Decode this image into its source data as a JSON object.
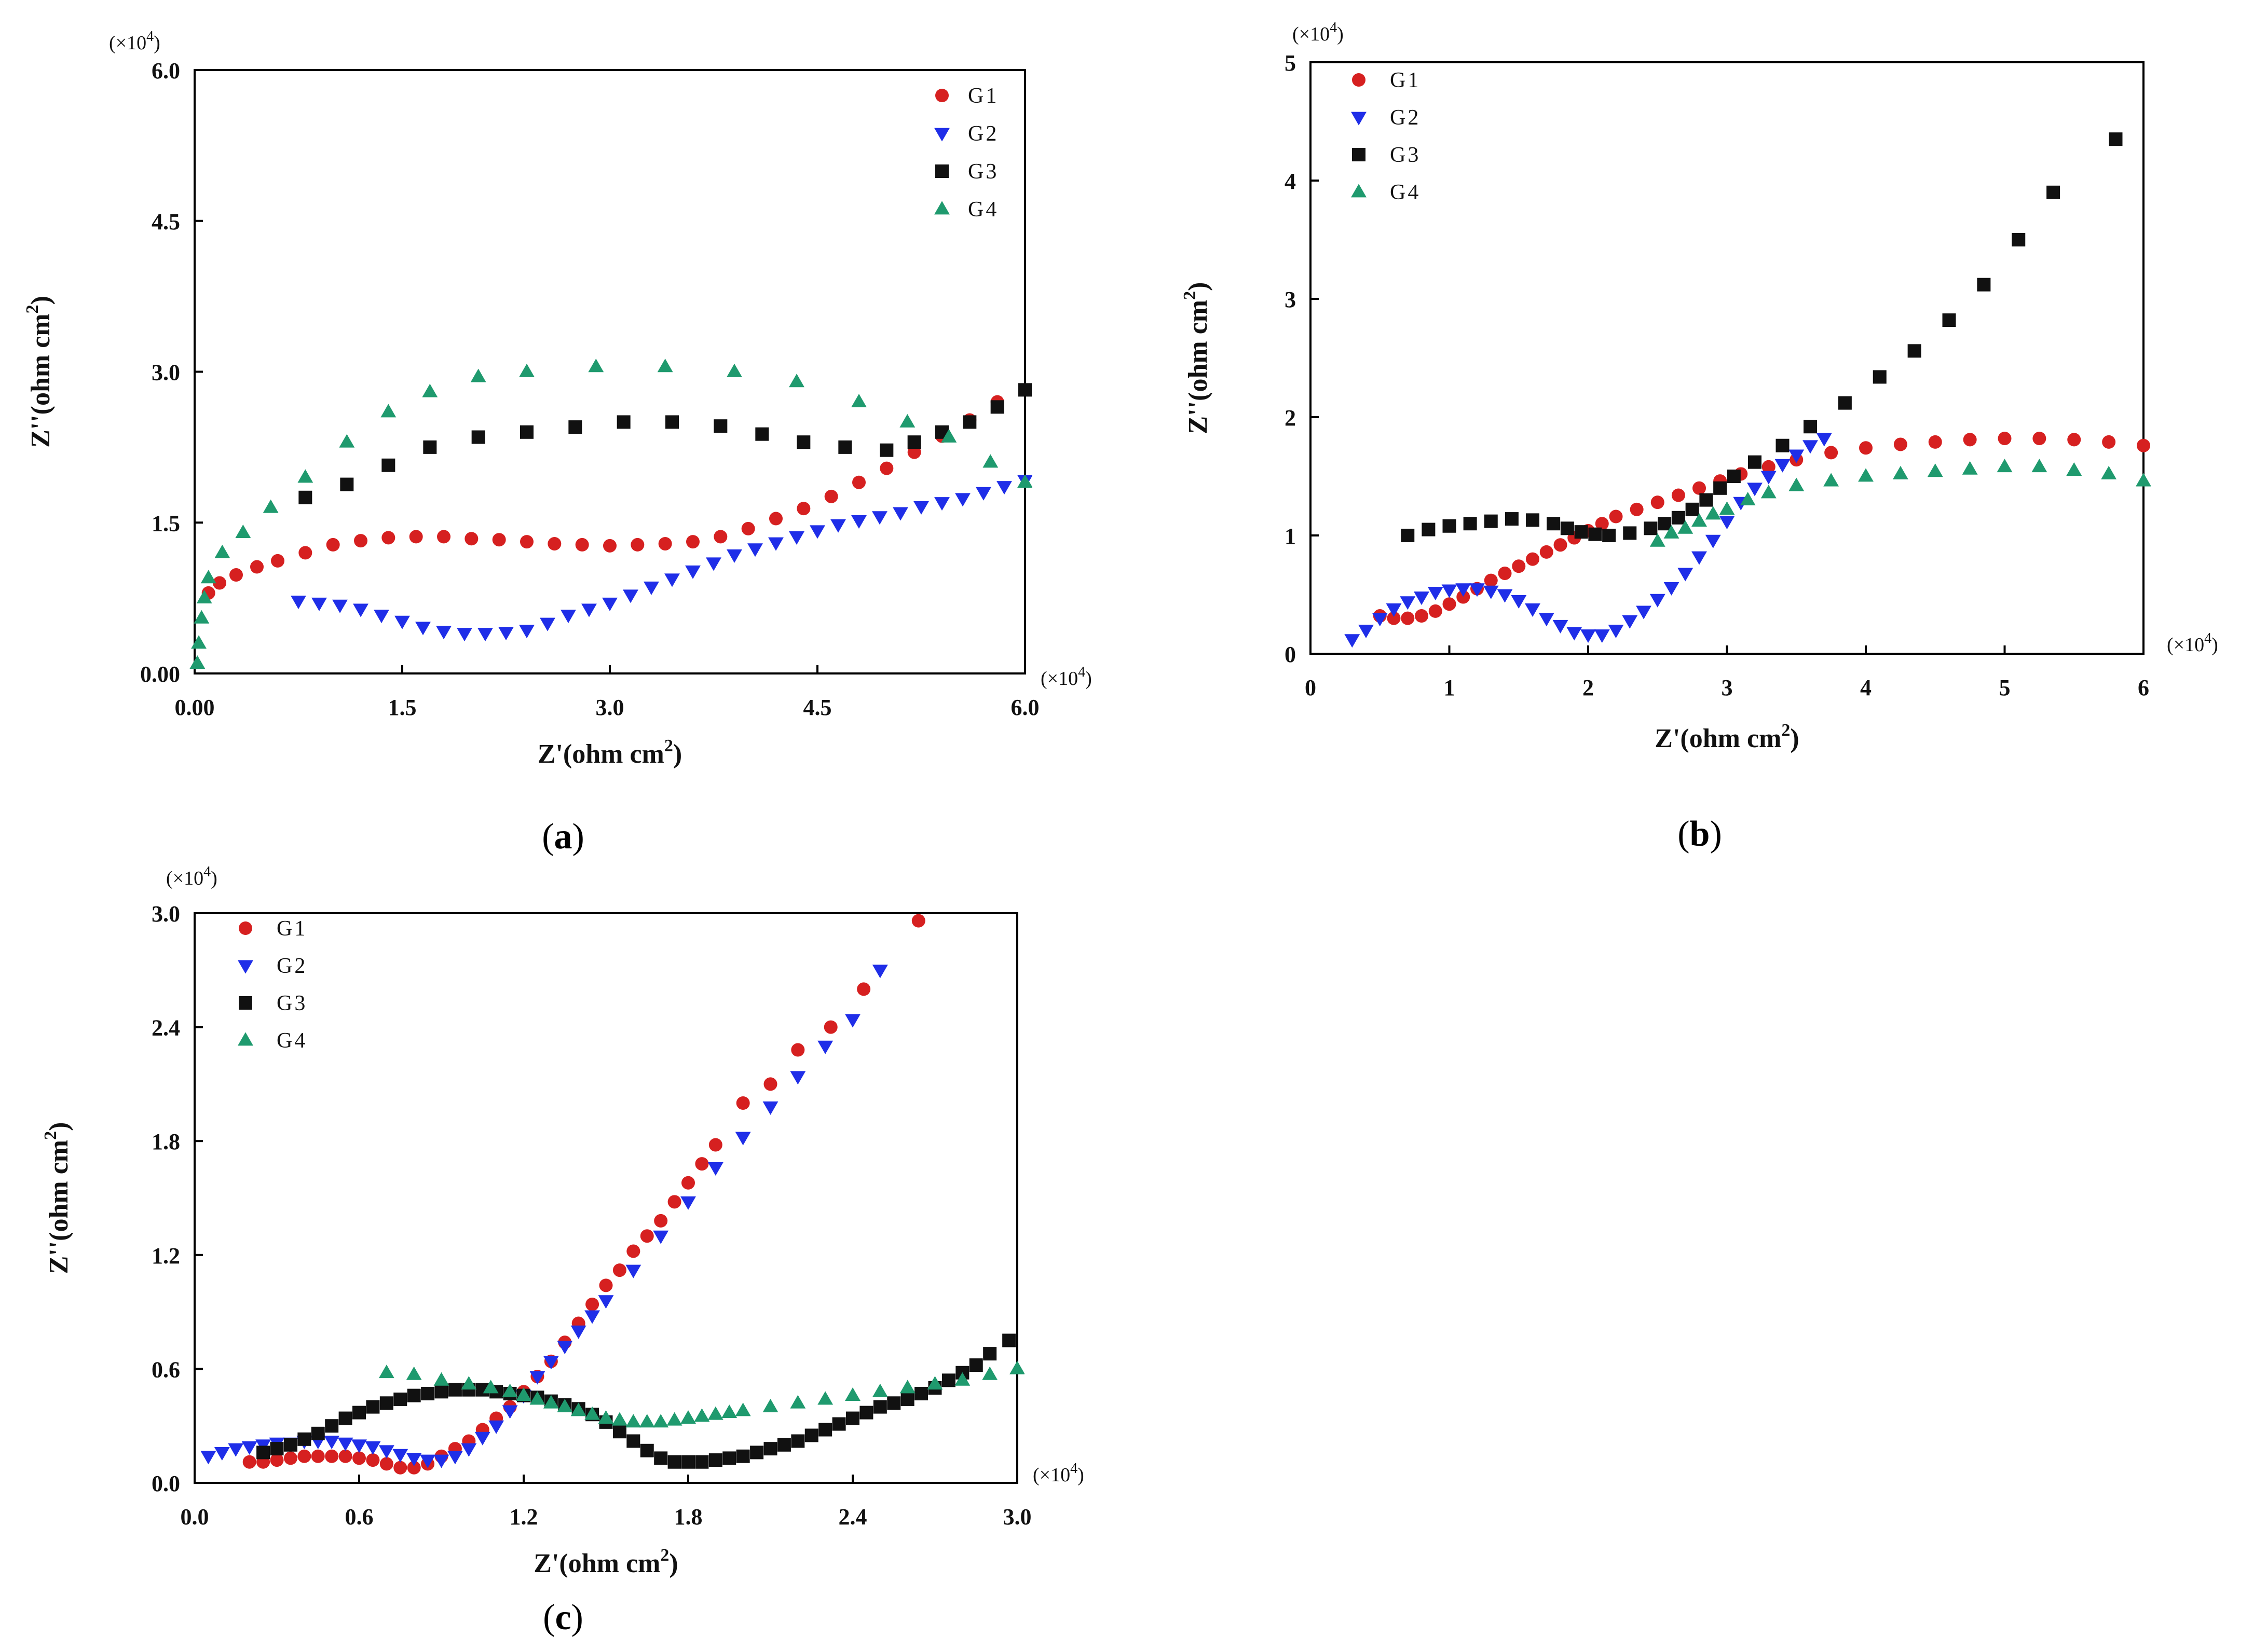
{
  "colors": {
    "G1": "#d62020",
    "G2": "#1f2ee8",
    "G3": "#111111",
    "G4": "#1f9a6e"
  },
  "chart_data": [
    {
      "id": "a",
      "type": "scatter",
      "panel_label": "a",
      "xlabel": "Z'(ohm cm",
      "xlabel_sup": "2",
      "ylabel": "Z''(ohm cm",
      "ylabel_sup": "2",
      "x_multiplier": "(×10",
      "x_multiplier_sup": "4",
      "y_multiplier": "(×10",
      "y_multiplier_sup": "4",
      "xlim": [
        0,
        6
      ],
      "ylim": [
        0,
        6
      ],
      "xticks": [
        0,
        1.5,
        3,
        4.5,
        6
      ],
      "xtick_labels": [
        "0.00",
        "1.5",
        "3.0",
        "4.5",
        "6.0"
      ],
      "yticks": [
        0,
        1.5,
        3,
        4.5,
        6
      ],
      "ytick_labels": [
        "0.00",
        "1.5",
        "3.0",
        "4.5",
        "6.0"
      ],
      "legend": [
        "G1",
        "G2",
        "G3",
        "G4"
      ],
      "legend_position": "top-right",
      "series": [
        {
          "name": "G1",
          "marker": "circle",
          "x": [
            0.1,
            0.18,
            0.3,
            0.45,
            0.6,
            0.8,
            1.0,
            1.2,
            1.4,
            1.6,
            1.8,
            2.0,
            2.2,
            2.4,
            2.6,
            2.8,
            3.0,
            3.2,
            3.4,
            3.6,
            3.8,
            4.0,
            4.2,
            4.4,
            4.6,
            4.8,
            5.0,
            5.2,
            5.4,
            5.6,
            5.8
          ],
          "y": [
            0.8,
            0.9,
            0.98,
            1.06,
            1.12,
            1.2,
            1.28,
            1.32,
            1.35,
            1.36,
            1.36,
            1.34,
            1.33,
            1.31,
            1.29,
            1.28,
            1.27,
            1.28,
            1.29,
            1.31,
            1.36,
            1.44,
            1.54,
            1.64,
            1.76,
            1.9,
            2.04,
            2.2,
            2.36,
            2.52,
            2.7
          ]
        },
        {
          "name": "G2",
          "marker": "triangle-down",
          "x": [
            0.75,
            0.9,
            1.05,
            1.2,
            1.35,
            1.5,
            1.65,
            1.8,
            1.95,
            2.1,
            2.25,
            2.4,
            2.55,
            2.7,
            2.85,
            3.0,
            3.15,
            3.3,
            3.45,
            3.6,
            3.75,
            3.9,
            4.05,
            4.2,
            4.35,
            4.5,
            4.65,
            4.8,
            4.95,
            5.1,
            5.25,
            5.4,
            5.55,
            5.7,
            5.85,
            6.0
          ],
          "y": [
            0.72,
            0.7,
            0.68,
            0.64,
            0.58,
            0.52,
            0.46,
            0.42,
            0.4,
            0.4,
            0.41,
            0.43,
            0.5,
            0.58,
            0.64,
            0.7,
            0.78,
            0.86,
            0.94,
            1.02,
            1.1,
            1.18,
            1.24,
            1.3,
            1.36,
            1.42,
            1.48,
            1.52,
            1.56,
            1.6,
            1.66,
            1.7,
            1.74,
            1.8,
            1.86,
            1.92
          ]
        },
        {
          "name": "G3",
          "marker": "square",
          "x": [
            0.8,
            1.1,
            1.4,
            1.7,
            2.05,
            2.4,
            2.75,
            3.1,
            3.45,
            3.8,
            4.1,
            4.4,
            4.7,
            5.0,
            5.2,
            5.4,
            5.6,
            5.8,
            6.0
          ],
          "y": [
            1.75,
            1.88,
            2.07,
            2.25,
            2.35,
            2.4,
            2.45,
            2.5,
            2.5,
            2.46,
            2.38,
            2.3,
            2.25,
            2.22,
            2.3,
            2.4,
            2.5,
            2.65,
            2.82
          ]
        },
        {
          "name": "G4",
          "marker": "triangle-up",
          "x": [
            0.02,
            0.03,
            0.05,
            0.07,
            0.1,
            0.2,
            0.35,
            0.55,
            0.8,
            1.1,
            1.4,
            1.7,
            2.05,
            2.4,
            2.9,
            3.4,
            3.9,
            4.35,
            4.8,
            5.15,
            5.45,
            5.75,
            6.0
          ],
          "y": [
            0.1,
            0.3,
            0.55,
            0.75,
            0.95,
            1.2,
            1.4,
            1.65,
            1.95,
            2.3,
            2.6,
            2.8,
            2.95,
            3.0,
            3.05,
            3.05,
            3.0,
            2.9,
            2.7,
            2.5,
            2.35,
            2.1,
            1.9
          ]
        }
      ]
    },
    {
      "id": "b",
      "type": "scatter",
      "panel_label": "b",
      "xlabel": "Z'(ohm cm",
      "xlabel_sup": "2",
      "ylabel": "Z''(ohm cm",
      "ylabel_sup": "2",
      "x_multiplier": "(×10",
      "x_multiplier_sup": "4",
      "y_multiplier": "(×10",
      "y_multiplier_sup": "4",
      "xlim": [
        0,
        6
      ],
      "ylim": [
        0,
        5
      ],
      "xticks": [
        0,
        1,
        2,
        3,
        4,
        5,
        6
      ],
      "xtick_labels": [
        "0",
        "1",
        "2",
        "3",
        "4",
        "5",
        "6"
      ],
      "yticks": [
        0,
        1,
        2,
        3,
        4,
        5
      ],
      "ytick_labels": [
        "0",
        "1",
        "2",
        "3",
        "4",
        "5"
      ],
      "legend": [
        "G1",
        "G2",
        "G3",
        "G4"
      ],
      "legend_position": "top-left",
      "series": [
        {
          "name": "G1",
          "marker": "circle",
          "x": [
            0.5,
            0.6,
            0.7,
            0.8,
            0.9,
            1.0,
            1.1,
            1.2,
            1.3,
            1.4,
            1.5,
            1.6,
            1.7,
            1.8,
            1.9,
            2.0,
            2.1,
            2.2,
            2.35,
            2.5,
            2.65,
            2.8,
            2.95,
            3.1,
            3.3,
            3.5,
            3.75,
            4.0,
            4.25,
            4.5,
            4.75,
            5.0,
            5.25,
            5.5,
            5.75,
            6.0
          ],
          "y": [
            0.32,
            0.3,
            0.3,
            0.32,
            0.36,
            0.42,
            0.48,
            0.55,
            0.62,
            0.68,
            0.74,
            0.8,
            0.86,
            0.92,
            0.98,
            1.04,
            1.1,
            1.16,
            1.22,
            1.28,
            1.34,
            1.4,
            1.46,
            1.52,
            1.58,
            1.64,
            1.7,
            1.74,
            1.77,
            1.79,
            1.81,
            1.82,
            1.82,
            1.81,
            1.79,
            1.76
          ]
        },
        {
          "name": "G2",
          "marker": "triangle-down",
          "x": [
            0.3,
            0.4,
            0.5,
            0.6,
            0.7,
            0.8,
            0.9,
            1.0,
            1.1,
            1.2,
            1.3,
            1.4,
            1.5,
            1.6,
            1.7,
            1.8,
            1.9,
            2.0,
            2.1,
            2.2,
            2.3,
            2.4,
            2.5,
            2.6,
            2.7,
            2.8,
            2.9,
            3.0,
            3.1,
            3.2,
            3.3,
            3.4,
            3.5,
            3.6,
            3.7
          ],
          "y": [
            0.12,
            0.2,
            0.3,
            0.38,
            0.44,
            0.48,
            0.52,
            0.54,
            0.55,
            0.55,
            0.53,
            0.5,
            0.45,
            0.38,
            0.3,
            0.24,
            0.18,
            0.16,
            0.16,
            0.2,
            0.28,
            0.36,
            0.46,
            0.56,
            0.68,
            0.82,
            0.96,
            1.12,
            1.28,
            1.4,
            1.5,
            1.6,
            1.68,
            1.76,
            1.82
          ]
        },
        {
          "name": "G3",
          "marker": "square",
          "x": [
            0.7,
            0.85,
            1.0,
            1.15,
            1.3,
            1.45,
            1.6,
            1.75,
            1.85,
            1.95,
            2.05,
            2.15,
            2.3,
            2.45,
            2.55,
            2.65,
            2.75,
            2.85,
            2.95,
            3.05,
            3.2,
            3.4,
            3.6,
            3.85,
            4.1,
            4.35,
            4.6,
            4.85,
            5.1,
            5.35,
            5.8
          ],
          "y": [
            1.0,
            1.05,
            1.08,
            1.1,
            1.12,
            1.14,
            1.13,
            1.1,
            1.06,
            1.03,
            1.01,
            1.0,
            1.02,
            1.06,
            1.1,
            1.15,
            1.22,
            1.3,
            1.4,
            1.5,
            1.62,
            1.76,
            1.92,
            2.12,
            2.34,
            2.56,
            2.82,
            3.12,
            3.5,
            3.9,
            4.35
          ]
        },
        {
          "name": "G4",
          "marker": "triangle-up",
          "x": [
            2.5,
            2.6,
            2.7,
            2.8,
            2.9,
            3.0,
            3.15,
            3.3,
            3.5,
            3.75,
            4.0,
            4.25,
            4.5,
            4.75,
            5.0,
            5.25,
            5.5,
            5.75,
            6.0
          ],
          "y": [
            0.95,
            1.02,
            1.06,
            1.12,
            1.18,
            1.22,
            1.3,
            1.36,
            1.42,
            1.46,
            1.5,
            1.52,
            1.54,
            1.56,
            1.58,
            1.58,
            1.55,
            1.52,
            1.46
          ]
        }
      ]
    },
    {
      "id": "c",
      "type": "scatter",
      "panel_label": "c",
      "xlabel": "Z'(ohm cm",
      "xlabel_sup": "2",
      "ylabel": "Z''(ohm cm",
      "ylabel_sup": "2",
      "x_multiplier": "(×10",
      "x_multiplier_sup": "4",
      "y_multiplier": "(×10",
      "y_multiplier_sup": "4",
      "xlim": [
        0,
        3
      ],
      "ylim": [
        0,
        3
      ],
      "xticks": [
        0,
        0.6,
        1.2,
        1.8,
        2.4,
        3.0
      ],
      "xtick_labels": [
        "0.0",
        "0.6",
        "1.2",
        "1.8",
        "2.4",
        "3.0"
      ],
      "yticks": [
        0,
        0.6,
        1.2,
        1.8,
        2.4,
        3.0
      ],
      "ytick_labels": [
        "0.0",
        "0.6",
        "1.2",
        "1.8",
        "2.4",
        "3.0"
      ],
      "legend": [
        "G1",
        "G2",
        "G3",
        "G4"
      ],
      "legend_position": "top-left",
      "series": [
        {
          "name": "G1",
          "marker": "circle",
          "x": [
            0.2,
            0.25,
            0.3,
            0.35,
            0.4,
            0.45,
            0.5,
            0.55,
            0.6,
            0.65,
            0.7,
            0.75,
            0.8,
            0.85,
            0.9,
            0.95,
            1.0,
            1.05,
            1.1,
            1.15,
            1.2,
            1.25,
            1.3,
            1.35,
            1.4,
            1.45,
            1.5,
            1.55,
            1.6,
            1.65,
            1.7,
            1.75,
            1.8,
            1.85,
            1.9,
            2.0,
            2.1,
            2.2,
            2.32,
            2.44,
            2.64
          ],
          "y": [
            0.11,
            0.11,
            0.12,
            0.13,
            0.14,
            0.14,
            0.14,
            0.14,
            0.13,
            0.12,
            0.1,
            0.08,
            0.08,
            0.1,
            0.14,
            0.18,
            0.22,
            0.28,
            0.34,
            0.4,
            0.48,
            0.56,
            0.64,
            0.74,
            0.84,
            0.94,
            1.04,
            1.12,
            1.22,
            1.3,
            1.38,
            1.48,
            1.58,
            1.68,
            1.78,
            2.0,
            2.1,
            2.28,
            2.4,
            2.6,
            2.96
          ]
        },
        {
          "name": "G2",
          "marker": "triangle-down",
          "x": [
            0.05,
            0.1,
            0.15,
            0.2,
            0.25,
            0.3,
            0.35,
            0.4,
            0.45,
            0.5,
            0.55,
            0.6,
            0.65,
            0.7,
            0.75,
            0.8,
            0.85,
            0.9,
            0.95,
            1.0,
            1.05,
            1.1,
            1.15,
            1.2,
            1.25,
            1.3,
            1.35,
            1.4,
            1.45,
            1.5,
            1.6,
            1.7,
            1.8,
            1.9,
            2.0,
            2.1,
            2.2,
            2.3,
            2.4,
            2.5
          ],
          "y": [
            0.14,
            0.16,
            0.18,
            0.19,
            0.2,
            0.21,
            0.21,
            0.22,
            0.22,
            0.22,
            0.21,
            0.2,
            0.19,
            0.17,
            0.15,
            0.13,
            0.12,
            0.12,
            0.14,
            0.18,
            0.24,
            0.3,
            0.38,
            0.46,
            0.56,
            0.64,
            0.72,
            0.8,
            0.88,
            0.96,
            1.12,
            1.3,
            1.48,
            1.66,
            1.82,
            1.98,
            2.14,
            2.3,
            2.44,
            2.7
          ]
        },
        {
          "name": "G3",
          "marker": "square",
          "x": [
            0.25,
            0.3,
            0.35,
            0.4,
            0.45,
            0.5,
            0.55,
            0.6,
            0.65,
            0.7,
            0.75,
            0.8,
            0.85,
            0.9,
            0.95,
            1.0,
            1.05,
            1.1,
            1.15,
            1.2,
            1.25,
            1.3,
            1.35,
            1.4,
            1.45,
            1.5,
            1.55,
            1.6,
            1.65,
            1.7,
            1.75,
            1.8,
            1.85,
            1.9,
            1.95,
            2.0,
            2.05,
            2.1,
            2.15,
            2.2,
            2.25,
            2.3,
            2.35,
            2.4,
            2.45,
            2.5,
            2.55,
            2.6,
            2.65,
            2.7,
            2.75,
            2.8,
            2.85,
            2.9,
            2.97
          ],
          "y": [
            0.16,
            0.18,
            0.2,
            0.23,
            0.26,
            0.3,
            0.34,
            0.37,
            0.4,
            0.42,
            0.44,
            0.46,
            0.47,
            0.48,
            0.49,
            0.49,
            0.49,
            0.48,
            0.47,
            0.46,
            0.45,
            0.43,
            0.41,
            0.39,
            0.36,
            0.32,
            0.27,
            0.22,
            0.17,
            0.13,
            0.11,
            0.11,
            0.11,
            0.12,
            0.13,
            0.14,
            0.16,
            0.18,
            0.2,
            0.22,
            0.25,
            0.28,
            0.31,
            0.34,
            0.37,
            0.4,
            0.42,
            0.44,
            0.47,
            0.5,
            0.54,
            0.58,
            0.62,
            0.68,
            0.75
          ]
        },
        {
          "name": "G4",
          "marker": "triangle-up",
          "x": [
            0.7,
            0.8,
            0.9,
            1.0,
            1.08,
            1.15,
            1.2,
            1.25,
            1.3,
            1.35,
            1.4,
            1.45,
            1.5,
            1.55,
            1.6,
            1.65,
            1.7,
            1.75,
            1.8,
            1.85,
            1.9,
            1.95,
            2.0,
            2.1,
            2.2,
            2.3,
            2.4,
            2.5,
            2.6,
            2.7,
            2.8,
            2.9,
            3.0
          ],
          "y": [
            0.58,
            0.57,
            0.54,
            0.52,
            0.5,
            0.48,
            0.46,
            0.44,
            0.42,
            0.4,
            0.38,
            0.36,
            0.34,
            0.33,
            0.32,
            0.32,
            0.32,
            0.33,
            0.34,
            0.35,
            0.36,
            0.37,
            0.38,
            0.4,
            0.42,
            0.44,
            0.46,
            0.48,
            0.5,
            0.52,
            0.54,
            0.57,
            0.6
          ]
        }
      ]
    }
  ]
}
